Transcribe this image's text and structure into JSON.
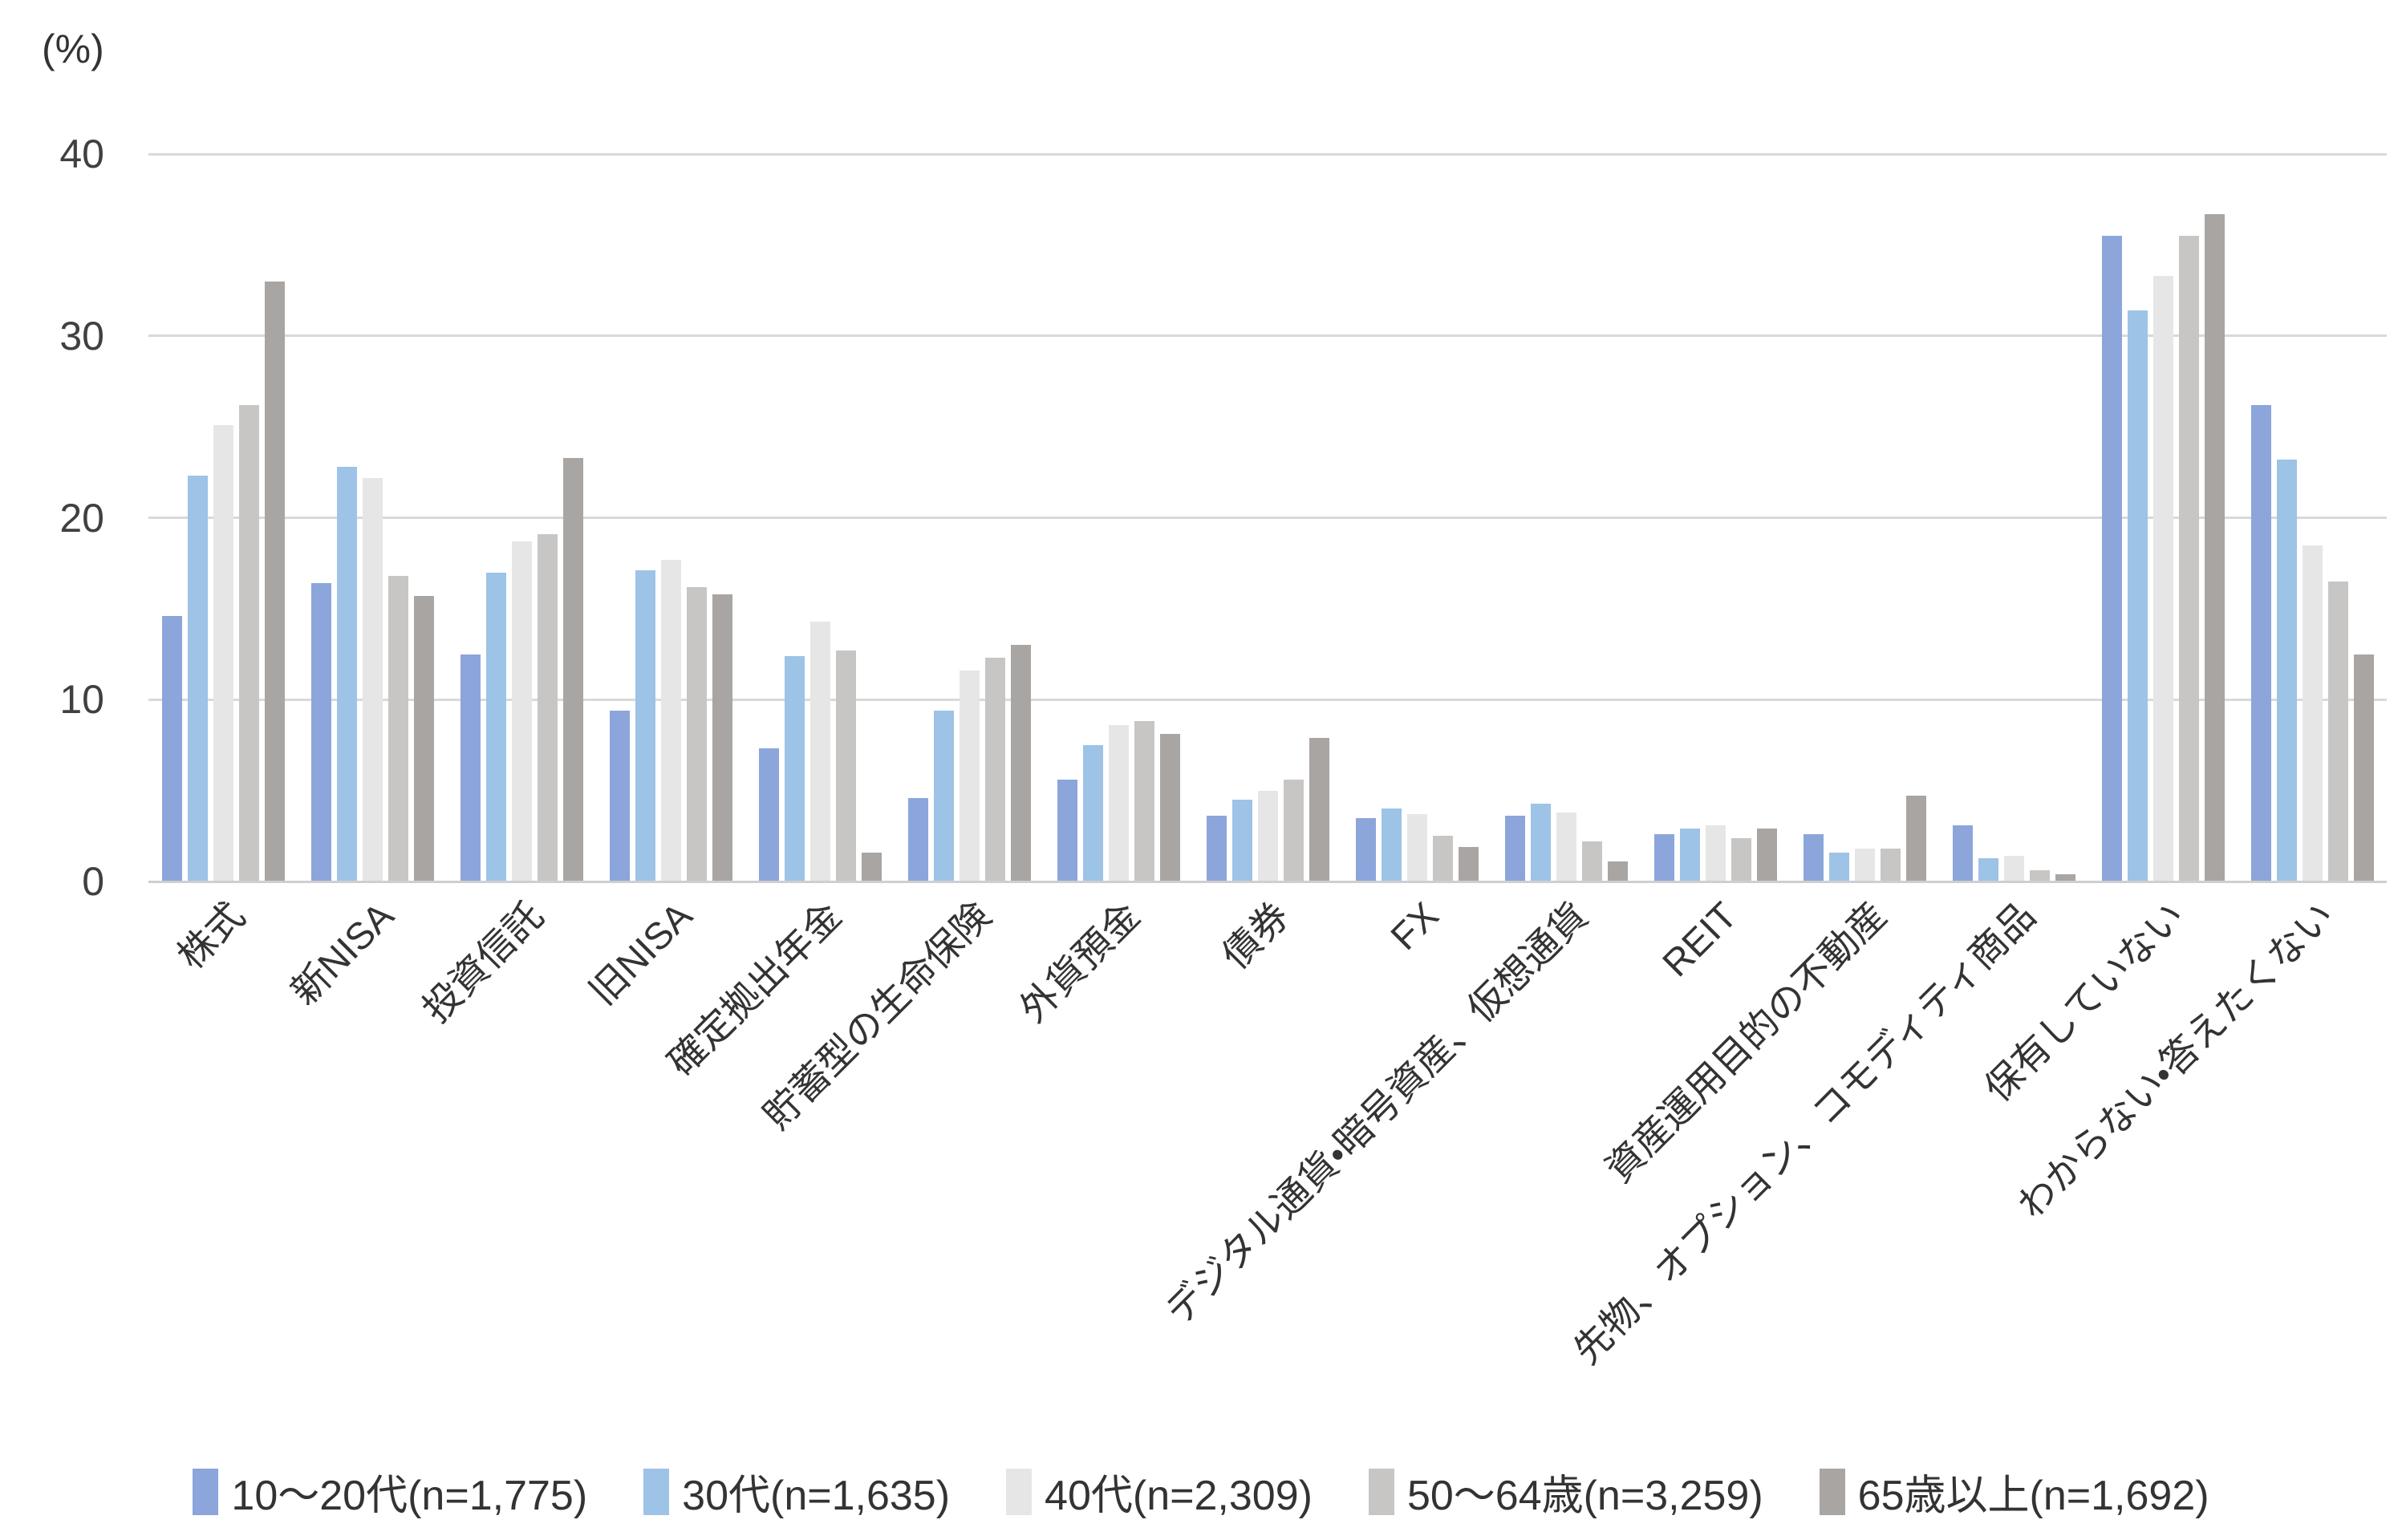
{
  "chart_data": {
    "type": "bar",
    "title": "",
    "unit_label": "(%)",
    "xlabel": "",
    "ylabel": "(%)",
    "ylim": [
      0,
      40
    ],
    "yticks": [
      0,
      10,
      20,
      30,
      40
    ],
    "grid": true,
    "legend_position": "bottom",
    "bar_group_style": "grouped-5-series",
    "colors": {
      "gridline": "#d9d9d9",
      "axis_baseline": "#cfcfcf",
      "axis_text": "#404040",
      "label_text": "#333333"
    },
    "categories": [
      "株式",
      "新NISA",
      "投資信託",
      "旧NISA",
      "確定拠出年金",
      "貯蓄型の生命保険",
      "外貨預金",
      "債券",
      "FX",
      "デジタル通貨・暗号資産、仮想通貨",
      "REIT",
      "資産運用目的の不動産",
      "先物、オプション、コモディティ商品",
      "保有していない",
      "わからない・答えたくない"
    ],
    "series": [
      {
        "name": "10〜20代(n=1,775)",
        "color": "#8CA5DB",
        "values": [
          14.6,
          16.4,
          12.5,
          9.4,
          7.3,
          4.6,
          5.6,
          3.6,
          3.5,
          3.6,
          2.6,
          2.6,
          3.1,
          35.5,
          26.2
        ]
      },
      {
        "name": "30代(n=1,635)",
        "color": "#9DC3E6",
        "values": [
          22.3,
          22.8,
          17.0,
          17.1,
          12.4,
          9.4,
          7.5,
          4.5,
          4.0,
          4.3,
          2.9,
          1.6,
          1.3,
          31.4,
          23.2
        ]
      },
      {
        "name": "40代(n=2,309)",
        "color": "#E7E6E6",
        "values": [
          25.1,
          22.2,
          18.7,
          17.7,
          14.3,
          11.6,
          8.6,
          5.0,
          3.7,
          3.8,
          3.1,
          1.8,
          1.4,
          33.3,
          18.5
        ]
      },
      {
        "name": "50〜64歳(n=3,259)",
        "color": "#C7C6C5",
        "values": [
          26.2,
          16.8,
          19.1,
          16.2,
          12.7,
          12.3,
          8.8,
          5.6,
          2.5,
          2.2,
          2.4,
          1.8,
          0.6,
          35.5,
          16.5
        ]
      },
      {
        "name": "65歳以上(n=1,692)",
        "color": "#A9A5A2",
        "values": [
          33.0,
          15.7,
          23.3,
          15.8,
          1.6,
          13.0,
          8.1,
          7.9,
          1.9,
          1.1,
          2.9,
          4.7,
          0.4,
          36.7,
          12.5
        ]
      }
    ]
  }
}
